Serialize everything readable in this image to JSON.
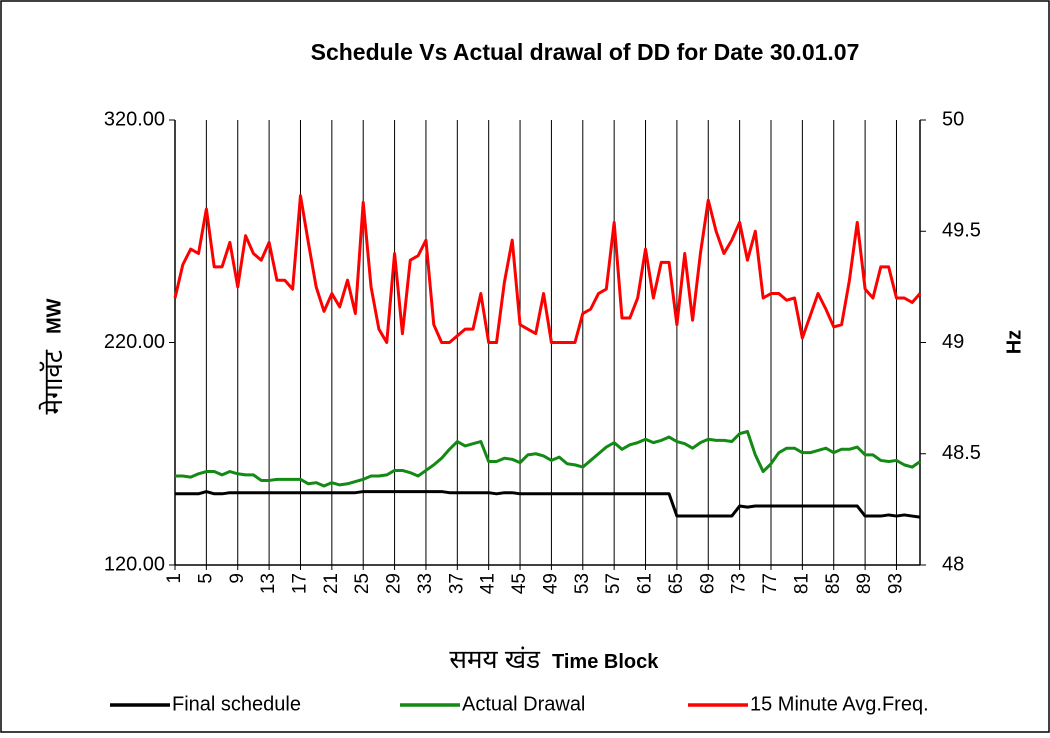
{
  "chart_data": {
    "type": "line",
    "title": "Schedule Vs Actual drawal of DD for Date 30.01.07",
    "y_label": "मेगावॅट",
    "y_label_en": "MW",
    "x_label": "समय खंड",
    "x_label_en": "Time Block",
    "y2_label": "Hz",
    "categories": [
      "1",
      null,
      null,
      null,
      "5",
      null,
      null,
      null,
      "9",
      null,
      null,
      null,
      "13",
      null,
      null,
      null,
      "17",
      null,
      null,
      null,
      "21",
      null,
      null,
      null,
      "25",
      null,
      null,
      null,
      "29",
      null,
      null,
      null,
      "33",
      null,
      null,
      null,
      "37",
      null,
      null,
      null,
      "41",
      null,
      null,
      null,
      "45",
      null,
      null,
      null,
      "49",
      null,
      null,
      null,
      "53",
      null,
      null,
      null,
      "57",
      null,
      null,
      null,
      "61",
      null,
      null,
      null,
      "65",
      null,
      null,
      null,
      "69",
      null,
      null,
      null,
      "73",
      null,
      null,
      null,
      "77",
      null,
      null,
      null,
      "81",
      null,
      null,
      null,
      "85",
      null,
      null,
      null,
      "89",
      null,
      null,
      null,
      "93",
      null,
      null,
      null
    ],
    "ylim": [
      120,
      320
    ],
    "yticks": [
      {
        "value": 120,
        "label": "120.00"
      },
      {
        "value": 220,
        "label": "220.00"
      },
      {
        "value": 320,
        "label": "320.00"
      }
    ],
    "y2lim": [
      48,
      50
    ],
    "y2ticks": [
      48,
      48.5,
      49,
      49.5,
      50
    ],
    "legend": "bottom",
    "series": [
      {
        "name": "Final schedule",
        "color": "#000000",
        "values": [
          152,
          152,
          152,
          152,
          153,
          152,
          152,
          152.5,
          152.5,
          152.5,
          152.5,
          152.5,
          152.5,
          152.5,
          152.5,
          152.5,
          152.5,
          152.5,
          152.5,
          152.5,
          152.5,
          152.5,
          152.5,
          152.5,
          153,
          153,
          153,
          153,
          153,
          153,
          153,
          153,
          153,
          153,
          153,
          152.5,
          152.5,
          152.5,
          152.5,
          152.5,
          152.5,
          152,
          152.5,
          152.5,
          152,
          152,
          152,
          152,
          152,
          152,
          152,
          152,
          152,
          152,
          152,
          152,
          152,
          152,
          152,
          152,
          152,
          152,
          152,
          152,
          142,
          142,
          142,
          142,
          142,
          142,
          142,
          142,
          146.5,
          146,
          146.5,
          146.5,
          146.5,
          146.5,
          146.5,
          146.5,
          146.5,
          146.5,
          146.5,
          146.5,
          146.5,
          146.5,
          146.5,
          146.5,
          142,
          142,
          142,
          142.5,
          142,
          142.5,
          142,
          141.5
        ]
      },
      {
        "name": "Actual Drawal",
        "color": "#138a13",
        "values": [
          160,
          160,
          159.5,
          161,
          162,
          162,
          160.5,
          162,
          161,
          160.5,
          160.5,
          158,
          158,
          158.5,
          158.5,
          158.5,
          158.5,
          156.5,
          157,
          155.5,
          157,
          156,
          156.5,
          157.5,
          158.5,
          160,
          160,
          160.5,
          162.5,
          162.5,
          161.5,
          160,
          162.5,
          165,
          168,
          172,
          175.5,
          173.5,
          174.5,
          175.5,
          166.5,
          166.5,
          168,
          167.5,
          166,
          169.5,
          170,
          169,
          167,
          168.5,
          165.5,
          165,
          164,
          167,
          170,
          173,
          175,
          172,
          174,
          175,
          176.5,
          175,
          176,
          177.5,
          175.5,
          174.5,
          172.5,
          175,
          176.5,
          176,
          176,
          175.5,
          179,
          180,
          169.5,
          162,
          165.5,
          170.5,
          172.5,
          172.5,
          170.5,
          170.5,
          171.5,
          172.5,
          170.5,
          172,
          172,
          173,
          169.5,
          169.5,
          167,
          166.5,
          167,
          165,
          164,
          166.5
        ]
      },
      {
        "name": "15 Minute Avg.Freq.",
        "color": "#ff0000",
        "axis": "y2",
        "values": [
          49.2,
          49.35,
          49.42,
          49.4,
          49.6,
          49.34,
          49.34,
          49.45,
          49.25,
          49.48,
          49.4,
          49.37,
          49.45,
          49.28,
          49.28,
          49.24,
          49.66,
          49.45,
          49.25,
          49.14,
          49.22,
          49.16,
          49.28,
          49.13,
          49.63,
          49.25,
          49.06,
          49.0,
          49.4,
          49.04,
          49.37,
          49.39,
          49.46,
          49.08,
          49.0,
          49.0,
          49.03,
          49.06,
          49.06,
          49.22,
          49.0,
          49.0,
          49.27,
          49.46,
          49.08,
          49.06,
          49.04,
          49.22,
          49.0,
          49.0,
          49.0,
          49.0,
          49.13,
          49.15,
          49.22,
          49.24,
          49.54,
          49.11,
          49.11,
          49.2,
          49.42,
          49.2,
          49.36,
          49.36,
          49.08,
          49.4,
          49.1,
          49.4,
          49.64,
          49.5,
          49.4,
          49.46,
          49.54,
          49.37,
          49.5,
          49.2,
          49.22,
          49.22,
          49.19,
          49.2,
          49.02,
          49.12,
          49.22,
          49.15,
          49.07,
          49.08,
          49.28,
          49.54,
          49.24,
          49.2,
          49.34,
          49.34,
          49.2,
          49.2,
          49.18,
          49.22
        ]
      }
    ]
  }
}
